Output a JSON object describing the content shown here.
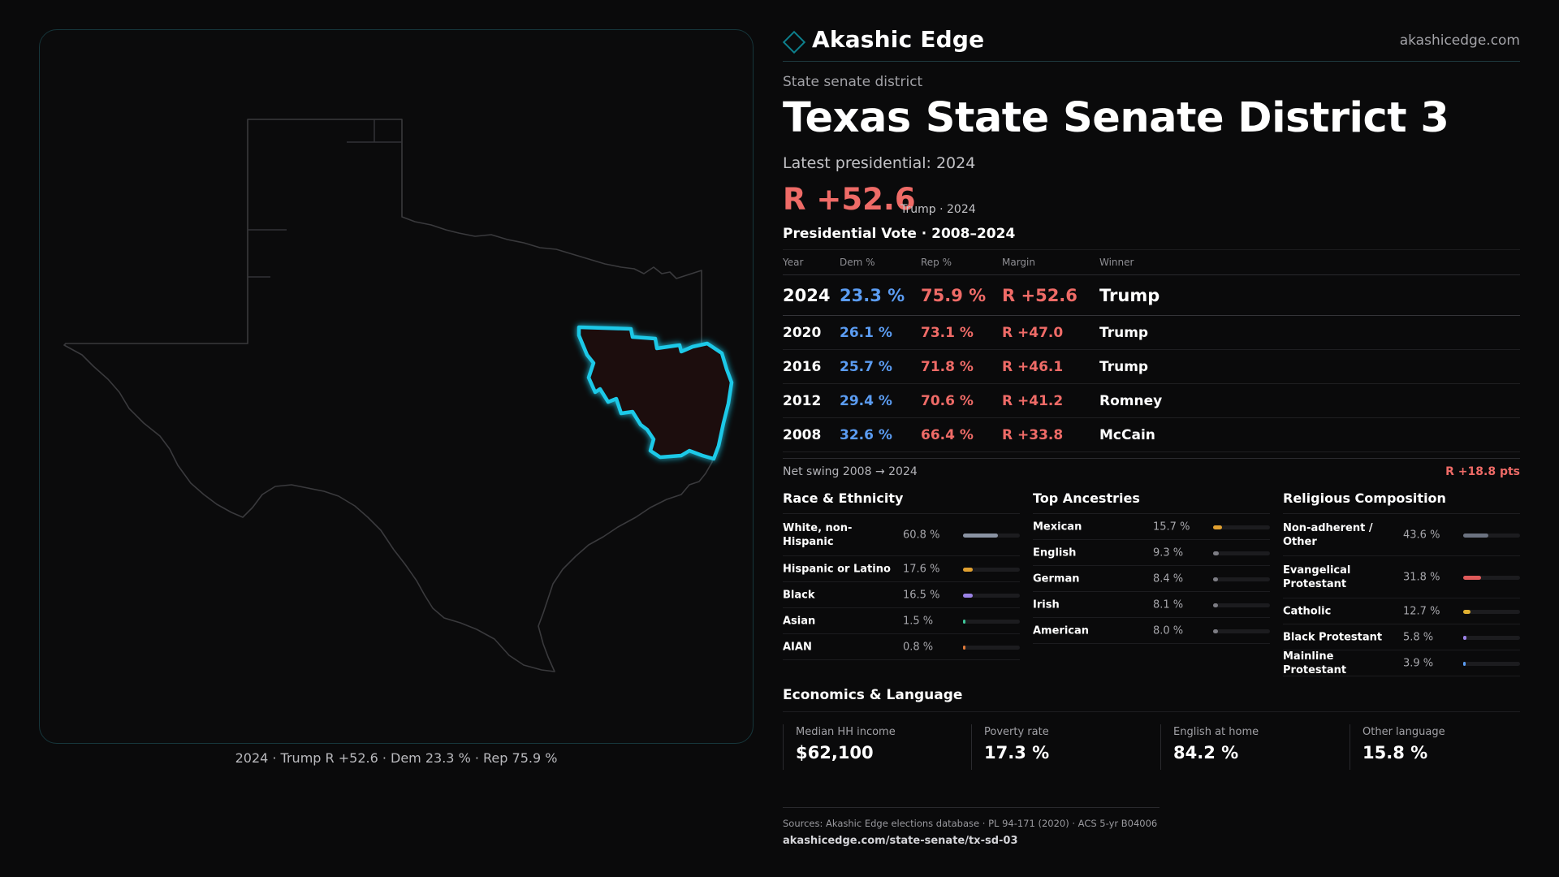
{
  "brand": {
    "name": "Akashic Edge",
    "site": "akashicedge.com"
  },
  "district": {
    "kicker": "State senate district",
    "state": "Texas",
    "name": "State Senate District 3",
    "latest_label": "Latest presidential: 2024",
    "margin": "R +52.6",
    "margin_sub": "Trump · 2024"
  },
  "map": {
    "caption": "2024 · Trump R +52.6 · Dem 23.3 % · Rep 75.9 %"
  },
  "vote_table": {
    "title": "Presidential Vote · 2008–2024",
    "headers": {
      "year": "Year",
      "dem": "Dem %",
      "rep": "Rep %",
      "margin": "Margin",
      "winner": "Winner"
    },
    "rows": [
      {
        "year": "2024",
        "dem": "23.3 %",
        "rep": "75.9 %",
        "margin": "R +52.6",
        "winner": "Trump"
      },
      {
        "year": "2020",
        "dem": "26.1 %",
        "rep": "73.1 %",
        "margin": "R +47.0",
        "winner": "Trump"
      },
      {
        "year": "2016",
        "dem": "25.7 %",
        "rep": "71.8 %",
        "margin": "R +46.1",
        "winner": "Trump"
      },
      {
        "year": "2012",
        "dem": "29.4 %",
        "rep": "70.6 %",
        "margin": "R +41.2",
        "winner": "Romney"
      },
      {
        "year": "2008",
        "dem": "32.6 %",
        "rep": "66.4 %",
        "margin": "R +33.8",
        "winner": "McCain"
      }
    ],
    "swing_label": "Net swing 2008 → 2024",
    "swing_value": "R +18.8 pts"
  },
  "race": {
    "title": "Race & Ethnicity",
    "rows": [
      {
        "label": "White, non-Hispanic",
        "pct": "60.8 %",
        "value": 60.8,
        "color": "#8a93a3"
      },
      {
        "label": "Hispanic or Latino",
        "pct": "17.6 %",
        "value": 17.6,
        "color": "#e0a030"
      },
      {
        "label": "Black",
        "pct": "16.5 %",
        "value": 16.5,
        "color": "#9b82e6"
      },
      {
        "label": "Asian",
        "pct": "1.5 %",
        "value": 1.5,
        "color": "#3fc79a"
      },
      {
        "label": "AIAN",
        "pct": "0.8 %",
        "value": 0.8,
        "color": "#e07a3a"
      }
    ]
  },
  "ancestry": {
    "title": "Top Ancestries",
    "rows": [
      {
        "label": "Mexican",
        "pct": "15.7 %",
        "value": 15.7,
        "color": "#e0a030"
      },
      {
        "label": "English",
        "pct": "9.3 %",
        "value": 9.3,
        "color": "#7d7d84"
      },
      {
        "label": "German",
        "pct": "8.4 %",
        "value": 8.4,
        "color": "#7d7d84"
      },
      {
        "label": "Irish",
        "pct": "8.1 %",
        "value": 8.1,
        "color": "#7d7d84"
      },
      {
        "label": "American",
        "pct": "8.0 %",
        "value": 8.0,
        "color": "#7d7d84"
      }
    ]
  },
  "religion": {
    "title": "Religious Composition",
    "rows": [
      {
        "label": "Non-adherent / Other",
        "pct": "43.6 %",
        "value": 43.6,
        "color": "#6b7280"
      },
      {
        "label": "Evangelical Protestant",
        "pct": "31.8 %",
        "value": 31.8,
        "color": "#e05a5a"
      },
      {
        "label": "Catholic",
        "pct": "12.7 %",
        "value": 12.7,
        "color": "#e0b030"
      },
      {
        "label": "Black Protestant",
        "pct": "5.8 %",
        "value": 5.8,
        "color": "#9b82e6"
      },
      {
        "label": "Mainline Protestant",
        "pct": "3.9 %",
        "value": 3.9,
        "color": "#5b9cf2"
      }
    ]
  },
  "economics": {
    "title": "Economics & Language",
    "items": [
      {
        "label": "Median HH income",
        "value": "$62,100"
      },
      {
        "label": "Poverty rate",
        "value": "17.3 %"
      },
      {
        "label": "English at home",
        "value": "84.2 %"
      },
      {
        "label": "Other language",
        "value": "15.8 %"
      }
    ]
  },
  "footer": {
    "sources": "Sources: Akashic Edge elections database · PL 94-171 (2020) · ACS 5-yr B04006",
    "url": "akashicedge.com/state-senate/tx-sd-03"
  },
  "colors": {
    "dem": "#5b9cf2",
    "rep": "#ef6b67",
    "highlight": "#1fc9e8",
    "district_fill": "#1c0d0e"
  }
}
